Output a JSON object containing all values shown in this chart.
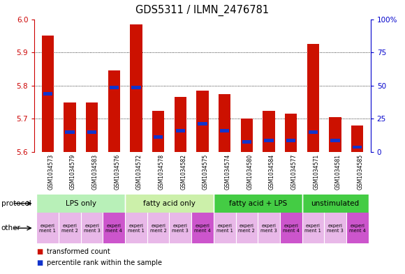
{
  "title": "GDS5311 / ILMN_2476781",
  "samples": [
    "GSM1034573",
    "GSM1034579",
    "GSM1034583",
    "GSM1034576",
    "GSM1034572",
    "GSM1034578",
    "GSM1034582",
    "GSM1034575",
    "GSM1034574",
    "GSM1034580",
    "GSM1034584",
    "GSM1034577",
    "GSM1034571",
    "GSM1034581",
    "GSM1034585"
  ],
  "red_values": [
    5.95,
    5.75,
    5.75,
    5.845,
    5.985,
    5.725,
    5.765,
    5.785,
    5.775,
    5.7,
    5.725,
    5.715,
    5.925,
    5.705,
    5.68
  ],
  "blue_values": [
    5.775,
    5.66,
    5.66,
    5.795,
    5.795,
    5.645,
    5.665,
    5.685,
    5.665,
    5.63,
    5.635,
    5.635,
    5.66,
    5.635,
    5.615
  ],
  "ylim_left": [
    5.6,
    6.0
  ],
  "ylim_right": [
    0,
    100
  ],
  "yticks_left": [
    5.6,
    5.7,
    5.8,
    5.9,
    6.0
  ],
  "yticks_right": [
    0,
    25,
    50,
    75,
    100
  ],
  "ytick_labels_right": [
    "0",
    "25",
    "50",
    "75",
    "100%"
  ],
  "proto_data": [
    {
      "label": "LPS only",
      "start": 0,
      "end": 4,
      "color": "#b8f0b8"
    },
    {
      "label": "fatty acid only",
      "start": 4,
      "end": 8,
      "color": "#ccf0aa"
    },
    {
      "label": "fatty acid + LPS",
      "start": 8,
      "end": 12,
      "color": "#44cc44"
    },
    {
      "label": "unstimulated",
      "start": 12,
      "end": 15,
      "color": "#44cc44"
    }
  ],
  "experiment_labels": [
    "experi\nment 1",
    "experi\nment 2",
    "experi\nment 3",
    "experi\nment 4",
    "experi\nment 1",
    "experi\nment 2",
    "experi\nment 3",
    "experi\nment 4",
    "experi\nment 1",
    "experi\nment 2",
    "experi\nment 3",
    "experi\nment 4",
    "experi\nment 1",
    "experi\nment 3",
    "experi\nment 4"
  ],
  "experiment_colors": [
    "#e8b8e8",
    "#e8b8e8",
    "#e8b8e8",
    "#cc55cc",
    "#e8b8e8",
    "#e8b8e8",
    "#e8b8e8",
    "#cc55cc",
    "#e8b8e8",
    "#e8b8e8",
    "#e8b8e8",
    "#cc55cc",
    "#e8b8e8",
    "#e8b8e8",
    "#cc55cc"
  ],
  "bar_color_red": "#cc1100",
  "bar_color_blue": "#1133cc",
  "bar_width": 0.55,
  "background_color": "#ffffff",
  "plot_bg_color": "#ffffff",
  "left_label_color": "#cc0000",
  "right_label_color": "#0000cc",
  "xtick_bg_color": "#cccccc"
}
